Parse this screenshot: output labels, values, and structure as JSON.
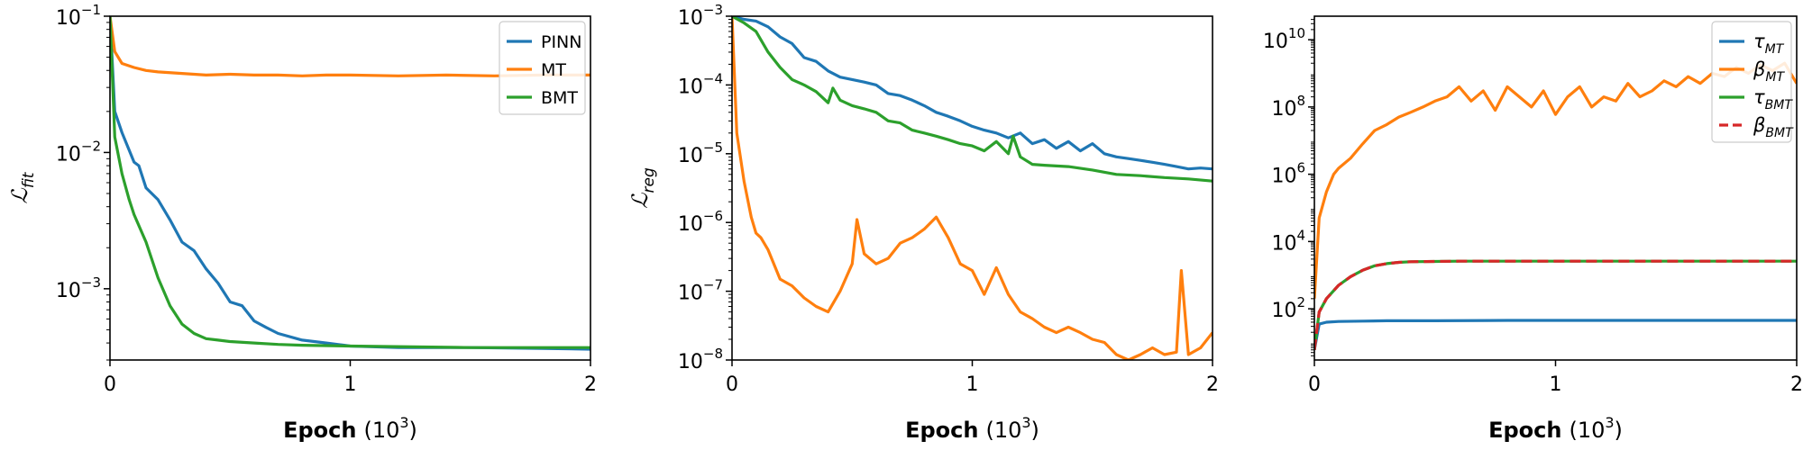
{
  "figure": {
    "xlabel_bold": "Epoch",
    "xlabel_unit_base": "(10",
    "xlabel_unit_exp": "3",
    "xlabel_unit_close": ")"
  },
  "colors": {
    "blue": "#1f77b4",
    "orange": "#ff7f0e",
    "green": "#2ca02c",
    "red": "#d62728"
  },
  "chart_data": [
    {
      "type": "line",
      "yscale": "log",
      "ylabel_base": "ℒ",
      "ylabel_sub": "fit",
      "xlim": [
        0,
        2
      ],
      "ylim": [
        0.0003,
        0.1
      ],
      "xticks": [
        0,
        1,
        2
      ],
      "yticks": [
        {
          "mant": "10",
          "exp": "−1",
          "value": 0.1
        },
        {
          "mant": "10",
          "exp": "−2",
          "value": 0.01
        },
        {
          "mant": "10",
          "exp": "−3",
          "value": 0.001
        }
      ],
      "legend": "top-right",
      "series": [
        {
          "name": "PINN",
          "color": "#1f77b4",
          "dashed": false,
          "x": [
            0,
            0.02,
            0.05,
            0.1,
            0.12,
            0.15,
            0.2,
            0.25,
            0.3,
            0.35,
            0.4,
            0.45,
            0.5,
            0.55,
            0.6,
            0.65,
            0.7,
            0.8,
            0.9,
            1.0,
            1.2,
            1.5,
            1.8,
            2.0
          ],
          "y": [
            0.1,
            0.02,
            0.014,
            0.0085,
            0.008,
            0.0055,
            0.0045,
            0.0032,
            0.0022,
            0.0019,
            0.0014,
            0.0011,
            0.0008,
            0.00075,
            0.00058,
            0.00052,
            0.00047,
            0.00042,
            0.0004,
            0.00038,
            0.00037,
            0.00037,
            0.000365,
            0.00036
          ]
        },
        {
          "name": "MT",
          "color": "#ff7f0e",
          "dashed": false,
          "x": [
            0,
            0.02,
            0.05,
            0.1,
            0.15,
            0.2,
            0.3,
            0.4,
            0.5,
            0.6,
            0.7,
            0.8,
            0.9,
            1.0,
            1.2,
            1.4,
            1.6,
            1.8,
            2.0
          ],
          "y": [
            0.1,
            0.055,
            0.045,
            0.042,
            0.04,
            0.039,
            0.038,
            0.037,
            0.0375,
            0.037,
            0.037,
            0.0365,
            0.037,
            0.037,
            0.0365,
            0.037,
            0.0365,
            0.037,
            0.037
          ]
        },
        {
          "name": "BMT",
          "color": "#2ca02c",
          "dashed": false,
          "x": [
            0,
            0.02,
            0.05,
            0.08,
            0.1,
            0.15,
            0.2,
            0.25,
            0.3,
            0.35,
            0.4,
            0.45,
            0.5,
            0.6,
            0.7,
            0.8,
            1.0,
            1.5,
            2.0
          ],
          "y": [
            0.1,
            0.013,
            0.007,
            0.0045,
            0.0035,
            0.0022,
            0.0012,
            0.00075,
            0.00055,
            0.00047,
            0.00043,
            0.00042,
            0.00041,
            0.0004,
            0.00039,
            0.000385,
            0.00038,
            0.00037,
            0.00037
          ]
        }
      ]
    },
    {
      "type": "line",
      "yscale": "log",
      "ylabel_base": "ℒ",
      "ylabel_sub": "reg",
      "xlim": [
        0,
        2
      ],
      "ylim": [
        1e-08,
        0.001
      ],
      "xticks": [
        0,
        1,
        2
      ],
      "yticks": [
        {
          "mant": "10",
          "exp": "−3",
          "value": 0.001
        },
        {
          "mant": "10",
          "exp": "−4",
          "value": 0.0001
        },
        {
          "mant": "10",
          "exp": "−5",
          "value": 1e-05
        },
        {
          "mant": "10",
          "exp": "−6",
          "value": 1e-06
        },
        {
          "mant": "10",
          "exp": "−7",
          "value": 1e-07
        },
        {
          "mant": "10",
          "exp": "−8",
          "value": 1e-08
        }
      ],
      "legend": "none",
      "series": [
        {
          "name": "",
          "color": "#1f77b4",
          "dashed": false,
          "x": [
            0,
            0.05,
            0.1,
            0.15,
            0.2,
            0.25,
            0.3,
            0.35,
            0.4,
            0.45,
            0.5,
            0.55,
            0.6,
            0.65,
            0.7,
            0.75,
            0.8,
            0.85,
            0.9,
            0.95,
            1.0,
            1.05,
            1.1,
            1.15,
            1.2,
            1.25,
            1.3,
            1.35,
            1.4,
            1.45,
            1.5,
            1.55,
            1.6,
            1.65,
            1.7,
            1.75,
            1.8,
            1.85,
            1.9,
            1.95,
            2.0
          ],
          "y": [
            0.001,
            0.0009,
            0.00085,
            0.0007,
            0.0005,
            0.0004,
            0.00025,
            0.00022,
            0.00016,
            0.00013,
            0.00012,
            0.00011,
            0.0001,
            7.5e-05,
            7e-05,
            6e-05,
            5e-05,
            4e-05,
            3.5e-05,
            3e-05,
            2.5e-05,
            2.2e-05,
            2e-05,
            1.7e-05,
            2e-05,
            1.4e-05,
            1.6e-05,
            1.2e-05,
            1.5e-05,
            1.1e-05,
            1.4e-05,
            1e-05,
            9e-06,
            8.5e-06,
            8e-06,
            7.5e-06,
            7e-06,
            6.5e-06,
            6e-06,
            6.2e-06,
            6e-06
          ]
        },
        {
          "name": "",
          "color": "#ff7f0e",
          "dashed": false,
          "x": [
            0,
            0.02,
            0.05,
            0.08,
            0.1,
            0.12,
            0.15,
            0.2,
            0.25,
            0.3,
            0.35,
            0.4,
            0.45,
            0.5,
            0.52,
            0.55,
            0.6,
            0.65,
            0.7,
            0.75,
            0.8,
            0.85,
            0.9,
            0.95,
            1.0,
            1.05,
            1.1,
            1.15,
            1.2,
            1.25,
            1.3,
            1.35,
            1.4,
            1.45,
            1.5,
            1.55,
            1.6,
            1.65,
            1.7,
            1.75,
            1.8,
            1.85,
            1.87,
            1.9,
            1.95,
            2.0
          ],
          "y": [
            0.001,
            2e-05,
            4e-06,
            1.2e-06,
            7e-07,
            6e-07,
            4e-07,
            1.5e-07,
            1.2e-07,
            8e-08,
            6e-08,
            5e-08,
            1e-07,
            2.5e-07,
            1.1e-06,
            3.5e-07,
            2.5e-07,
            3e-07,
            5e-07,
            6e-07,
            8e-07,
            1.2e-06,
            6e-07,
            2.5e-07,
            2e-07,
            9e-08,
            2.2e-07,
            9e-08,
            5e-08,
            4e-08,
            3e-08,
            2.5e-08,
            3e-08,
            2.5e-08,
            2e-08,
            1.8e-08,
            1.2e-08,
            1e-08,
            1.2e-08,
            1.5e-08,
            1.2e-08,
            1.3e-08,
            2e-07,
            1.2e-08,
            1.5e-08,
            2.5e-08
          ]
        },
        {
          "name": "",
          "color": "#2ca02c",
          "dashed": false,
          "x": [
            0,
            0.05,
            0.1,
            0.15,
            0.2,
            0.25,
            0.3,
            0.35,
            0.4,
            0.42,
            0.45,
            0.5,
            0.55,
            0.6,
            0.65,
            0.7,
            0.75,
            0.8,
            0.85,
            0.9,
            0.95,
            1.0,
            1.05,
            1.1,
            1.15,
            1.17,
            1.2,
            1.25,
            1.3,
            1.4,
            1.5,
            1.6,
            1.7,
            1.8,
            1.9,
            2.0
          ],
          "y": [
            0.001,
            0.0008,
            0.0006,
            0.0003,
            0.00018,
            0.00012,
            0.0001,
            8e-05,
            5.5e-05,
            9e-05,
            6e-05,
            5e-05,
            4.5e-05,
            4e-05,
            3e-05,
            2.8e-05,
            2.2e-05,
            2e-05,
            1.8e-05,
            1.6e-05,
            1.4e-05,
            1.3e-05,
            1.1e-05,
            1.5e-05,
            1e-05,
            1.8e-05,
            9e-06,
            7e-06,
            6.8e-06,
            6.5e-06,
            5.8e-06,
            5e-06,
            4.8e-06,
            4.5e-06,
            4.3e-06,
            4e-06
          ]
        }
      ]
    },
    {
      "type": "line",
      "yscale": "log",
      "ylabel_base": "",
      "ylabel_sub": "",
      "xlim": [
        0,
        2
      ],
      "ylim": [
        3,
        50000000000.0
      ],
      "xticks": [
        0,
        1,
        2
      ],
      "yticks": [
        {
          "mant": "10",
          "exp": "10",
          "value": 10000000000.0
        },
        {
          "mant": "10",
          "exp": "8",
          "value": 100000000.0
        },
        {
          "mant": "10",
          "exp": "6",
          "value": 1000000.0
        },
        {
          "mant": "10",
          "exp": "4",
          "value": 10000.0
        },
        {
          "mant": "10",
          "exp": "2",
          "value": 100
        }
      ],
      "legend": "top-right",
      "series": [
        {
          "name": "τ",
          "name_sub": "MT",
          "color": "#1f77b4",
          "dashed": false,
          "x": [
            0,
            0.02,
            0.05,
            0.1,
            0.2,
            0.3,
            0.5,
            0.8,
            1.0,
            1.5,
            2.0
          ],
          "y": [
            6,
            35,
            40,
            42,
            43,
            44,
            44,
            45,
            45,
            45,
            45
          ]
        },
        {
          "name": "β",
          "name_sub": "MT",
          "color": "#ff7f0e",
          "dashed": false,
          "x": [
            0,
            0.02,
            0.05,
            0.08,
            0.1,
            0.15,
            0.2,
            0.25,
            0.3,
            0.35,
            0.4,
            0.45,
            0.5,
            0.55,
            0.6,
            0.65,
            0.7,
            0.75,
            0.8,
            0.85,
            0.9,
            0.95,
            1.0,
            1.05,
            1.1,
            1.15,
            1.2,
            1.25,
            1.3,
            1.35,
            1.4,
            1.45,
            1.5,
            1.55,
            1.6,
            1.65,
            1.7,
            1.75,
            1.8,
            1.85,
            1.9,
            1.95,
            2.0
          ],
          "y": [
            200,
            50000,
            300000,
            1000000,
            1500000,
            3000000,
            8000000,
            20000000,
            30000000,
            50000000,
            70000000,
            100000000,
            150000000,
            200000000,
            400000000,
            150000000,
            300000000,
            80000000,
            400000000,
            200000000,
            100000000,
            300000000,
            60000000,
            200000000,
            400000000,
            100000000,
            200000000,
            150000000,
            500000000,
            200000000,
            300000000,
            600000000,
            400000000,
            800000000,
            500000000,
            1000000000,
            800000000,
            1500000000,
            1000000000,
            1800000000,
            1200000000,
            2000000000,
            500000000
          ]
        },
        {
          "name": "τ",
          "name_sub": "BMT",
          "color": "#2ca02c",
          "dashed": false,
          "x": [
            0,
            0.02,
            0.05,
            0.1,
            0.15,
            0.2,
            0.25,
            0.3,
            0.35,
            0.4,
            0.5,
            0.6,
            0.8,
            1.0,
            1.5,
            2.0
          ],
          "y": [
            6,
            80,
            200,
            500,
            900,
            1400,
            1900,
            2200,
            2400,
            2500,
            2550,
            2600,
            2600,
            2600,
            2600,
            2600
          ]
        },
        {
          "name": "β",
          "name_sub": "BMT",
          "color": "#d62728",
          "dashed": true,
          "x": [
            0,
            0.02,
            0.05,
            0.1,
            0.15,
            0.2,
            0.25,
            0.3,
            0.35,
            0.4,
            0.5,
            0.6,
            0.8,
            1.0,
            1.5,
            2.0
          ],
          "y": [
            6,
            80,
            200,
            500,
            900,
            1400,
            1900,
            2200,
            2400,
            2500,
            2550,
            2600,
            2600,
            2600,
            2600,
            2600
          ]
        }
      ]
    }
  ]
}
